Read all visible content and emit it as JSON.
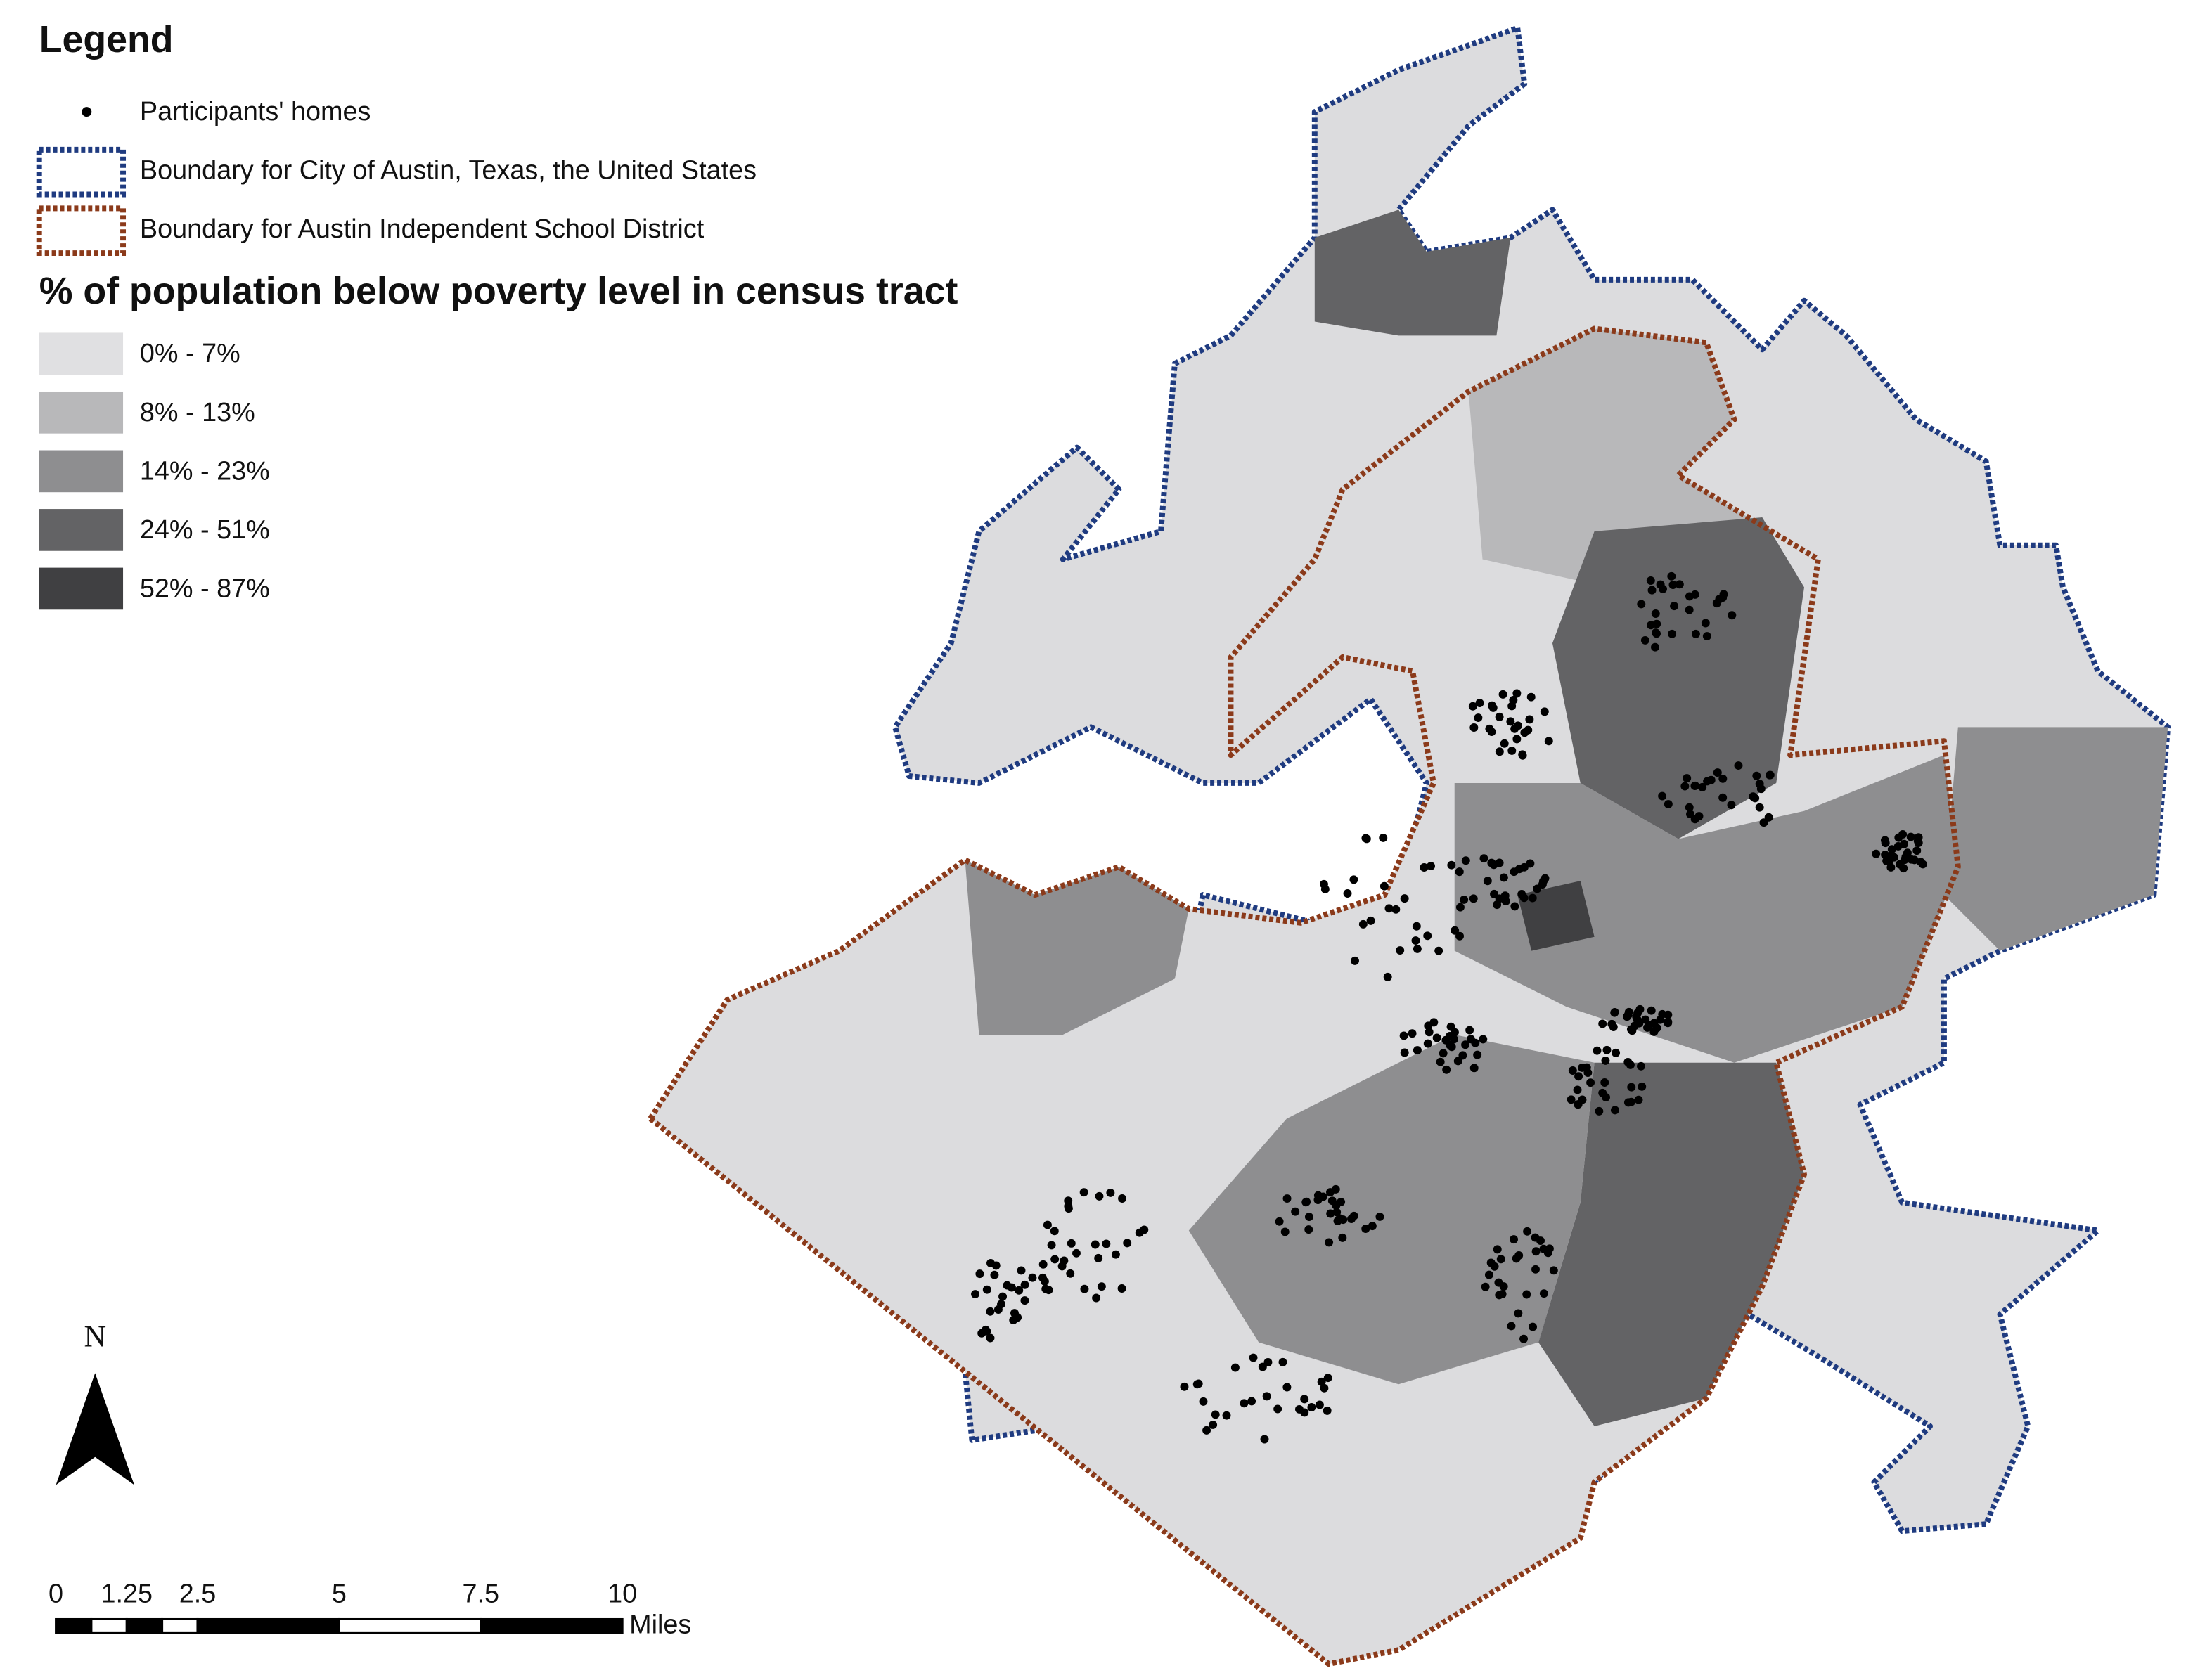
{
  "legend": {
    "title": "Legend",
    "items": [
      {
        "label": "Participants' homes",
        "color": "#000000"
      },
      {
        "label": "Boundary for City of Austin, Texas, the United States",
        "color": "#1f3b80"
      },
      {
        "label": "Boundary for Austin Independent School District",
        "color": "#8b3a1a"
      }
    ],
    "poverty_title": "% of population below poverty level in census tract",
    "classes": [
      {
        "label": "0% - 7%",
        "color": "#e0e0e2"
      },
      {
        "label": "8% - 13%",
        "color": "#b8b8ba"
      },
      {
        "label": "14% - 23%",
        "color": "#8e8e90"
      },
      {
        "label": "24% - 51%",
        "color": "#636365"
      },
      {
        "label": "52% - 87%",
        "color": "#404042"
      }
    ]
  },
  "north_arrow": "N",
  "scale_bar": {
    "ticks": [
      0,
      1.25,
      2.5,
      5,
      7.5,
      10
    ],
    "unit": "Miles"
  }
}
